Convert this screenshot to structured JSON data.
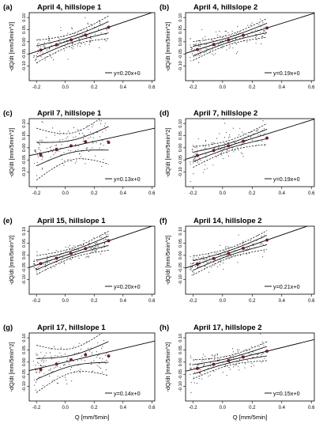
{
  "chart_data": [
    {
      "type": "scatter",
      "panel_label": "(a)",
      "title": "April 4, hillslope 1",
      "xlabel": "",
      "ylabel": "-dQ/dt [mm/5min^2]",
      "xlim": [
        -0.25,
        0.62
      ],
      "ylim": [
        -0.16,
        0.12
      ],
      "xticks": [
        "-0.2",
        "0.0",
        "0.2",
        "0.4",
        "0.6"
      ],
      "yticks": [
        "-0.10",
        "-0.05",
        "0.00",
        "0.05",
        "0.10"
      ],
      "legend": "y=0.20x+0",
      "legend_position": "bottom-right",
      "slope": 0.2,
      "band_inner": 0.012,
      "band_outer": 0.024,
      "scatter_spread": 0.03,
      "binned_points": [
        {
          "x": -0.17,
          "y": -0.034
        },
        {
          "x": -0.06,
          "y": -0.012
        },
        {
          "x": 0.04,
          "y": 0.008
        },
        {
          "x": 0.14,
          "y": 0.028
        },
        {
          "x": 0.3,
          "y": 0.06
        }
      ]
    },
    {
      "type": "scatter",
      "panel_label": "(b)",
      "title": "April 4, hillslope 2",
      "xlabel": "",
      "ylabel": "-dQ/dt [mm/5min^2]",
      "xlim": [
        -0.25,
        0.62
      ],
      "ylim": [
        -0.16,
        0.12
      ],
      "xticks": [
        "-0.2",
        "0.0",
        "0.2",
        "0.4",
        "0.6"
      ],
      "yticks": [
        "-0.10",
        "-0.05",
        "0.00",
        "0.05",
        "0.10"
      ],
      "legend": "y=0.19x+0",
      "legend_position": "bottom-right",
      "slope": 0.19,
      "band_inner": 0.01,
      "band_outer": 0.02,
      "scatter_spread": 0.03,
      "binned_points": [
        {
          "x": -0.17,
          "y": -0.032
        },
        {
          "x": -0.06,
          "y": -0.011
        },
        {
          "x": 0.04,
          "y": 0.008
        },
        {
          "x": 0.14,
          "y": 0.027
        },
        {
          "x": 0.3,
          "y": 0.057
        }
      ]
    },
    {
      "type": "scatter",
      "panel_label": "(c)",
      "title": "April 7, hillslope 1",
      "xlabel": "",
      "ylabel": "-dQ/dt [mm/5min^2]",
      "xlim": [
        -0.25,
        0.62
      ],
      "ylim": [
        -0.16,
        0.12
      ],
      "xticks": [
        "-0.2",
        "0.0",
        "0.2",
        "0.4",
        "0.6"
      ],
      "yticks": [
        "-0.10",
        "-0.05",
        "0.00",
        "0.05",
        "0.10"
      ],
      "legend": "y=0.13x+0",
      "legend_position": "bottom-right",
      "slope": 0.13,
      "band_inner": 0.025,
      "band_outer": 0.055,
      "scatter_spread": 0.05,
      "binned_points": [
        {
          "x": -0.17,
          "y": -0.03
        },
        {
          "x": -0.06,
          "y": -0.008
        },
        {
          "x": 0.04,
          "y": 0.008
        },
        {
          "x": 0.14,
          "y": 0.025
        },
        {
          "x": 0.3,
          "y": 0.022
        }
      ]
    },
    {
      "type": "scatter",
      "panel_label": "(d)",
      "title": "April 7, hillslope 2",
      "xlabel": "",
      "ylabel": "-dQ/dt [mm/5min^2]",
      "xlim": [
        -0.25,
        0.62
      ],
      "ylim": [
        -0.16,
        0.12
      ],
      "xticks": [
        "-0.2",
        "0.0",
        "0.2",
        "0.4",
        "0.6"
      ],
      "yticks": [
        "-0.10",
        "-0.05",
        "0.00",
        "0.05",
        "0.10"
      ],
      "legend": "y=0.19x+0",
      "legend_position": "bottom-right",
      "slope": 0.19,
      "band_inner": 0.01,
      "band_outer": 0.022,
      "scatter_spread": 0.045,
      "binned_points": [
        {
          "x": -0.17,
          "y": -0.032
        },
        {
          "x": -0.06,
          "y": -0.011
        },
        {
          "x": 0.04,
          "y": 0.008
        },
        {
          "x": 0.14,
          "y": 0.027
        },
        {
          "x": 0.3,
          "y": 0.04
        }
      ]
    },
    {
      "type": "scatter",
      "panel_label": "(e)",
      "title": "April 15, hillslope 1",
      "xlabel": "",
      "ylabel": "-dQ/dt [mm/5min^2]",
      "xlim": [
        -0.25,
        0.62
      ],
      "ylim": [
        -0.16,
        0.12
      ],
      "xticks": [
        "-0.2",
        "0.0",
        "0.2",
        "0.4",
        "0.6"
      ],
      "yticks": [
        "-0.10",
        "-0.05",
        "0.00",
        "0.05",
        "0.10"
      ],
      "legend": "y=0.20x+0",
      "legend_position": "bottom-right",
      "slope": 0.2,
      "band_inner": 0.01,
      "band_outer": 0.02,
      "scatter_spread": 0.025,
      "binned_points": [
        {
          "x": -0.17,
          "y": -0.034
        },
        {
          "x": -0.06,
          "y": -0.012
        },
        {
          "x": 0.04,
          "y": 0.008
        },
        {
          "x": 0.14,
          "y": 0.028
        },
        {
          "x": 0.3,
          "y": 0.06
        }
      ]
    },
    {
      "type": "scatter",
      "panel_label": "(f)",
      "title": "April 14, hillslope 2",
      "xlabel": "",
      "ylabel": "-dQ/dt [mm/5min^2]",
      "xlim": [
        -0.25,
        0.62
      ],
      "ylim": [
        -0.16,
        0.12
      ],
      "xticks": [
        "-0.2",
        "0.0",
        "0.2",
        "0.4",
        "0.6"
      ],
      "yticks": [
        "-0.10",
        "-0.05",
        "0.00",
        "0.05",
        "0.10"
      ],
      "legend": "y=0.21x+0",
      "legend_position": "bottom-right",
      "slope": 0.21,
      "band_inner": 0.01,
      "band_outer": 0.02,
      "scatter_spread": 0.028,
      "binned_points": [
        {
          "x": -0.17,
          "y": -0.036
        },
        {
          "x": -0.06,
          "y": -0.013
        },
        {
          "x": 0.04,
          "y": 0.008
        },
        {
          "x": 0.14,
          "y": 0.029
        },
        {
          "x": 0.3,
          "y": 0.063
        }
      ]
    },
    {
      "type": "scatter",
      "panel_label": "(g)",
      "title": "April 17, hillslope 1",
      "xlabel": "Q [mm/5min]",
      "ylabel": "-dQ/dt [mm/5min^2]",
      "xlim": [
        -0.25,
        0.62
      ],
      "ylim": [
        -0.16,
        0.12
      ],
      "xticks": [
        "-0.2",
        "0.0",
        "0.2",
        "0.4",
        "0.6"
      ],
      "yticks": [
        "-0.10",
        "-0.05",
        "0.00",
        "0.05",
        "0.10"
      ],
      "legend": "y=0.14x+0",
      "legend_position": "bottom-right",
      "slope": 0.14,
      "band_inner": 0.022,
      "band_outer": 0.05,
      "scatter_spread": 0.045,
      "binned_points": [
        {
          "x": -0.17,
          "y": -0.03
        },
        {
          "x": -0.06,
          "y": -0.008
        },
        {
          "x": 0.04,
          "y": 0.01
        },
        {
          "x": 0.14,
          "y": 0.03
        },
        {
          "x": 0.3,
          "y": 0.025
        }
      ]
    },
    {
      "type": "scatter",
      "panel_label": "(h)",
      "title": "April 17, hillslope 2",
      "xlabel": "Q [mm/5min]",
      "ylabel": "-dQ/dt [mm/5min^2]",
      "xlim": [
        -0.25,
        0.62
      ],
      "ylim": [
        -0.16,
        0.12
      ],
      "xticks": [
        "-0.2",
        "0.0",
        "0.2",
        "0.4",
        "0.6"
      ],
      "yticks": [
        "-0.10",
        "-0.05",
        "0.00",
        "0.05",
        "0.10"
      ],
      "legend": "y=0.15x+0",
      "legend_position": "bottom-right",
      "slope": 0.15,
      "band_inner": 0.01,
      "band_outer": 0.02,
      "scatter_spread": 0.035,
      "binned_points": [
        {
          "x": -0.17,
          "y": -0.026
        },
        {
          "x": -0.06,
          "y": -0.009
        },
        {
          "x": 0.04,
          "y": 0.006
        },
        {
          "x": 0.14,
          "y": 0.021
        },
        {
          "x": 0.3,
          "y": 0.045
        }
      ]
    }
  ],
  "colors": {
    "binned_point": "#8b1a1a",
    "scatter": "#222222",
    "line": "#000000"
  }
}
